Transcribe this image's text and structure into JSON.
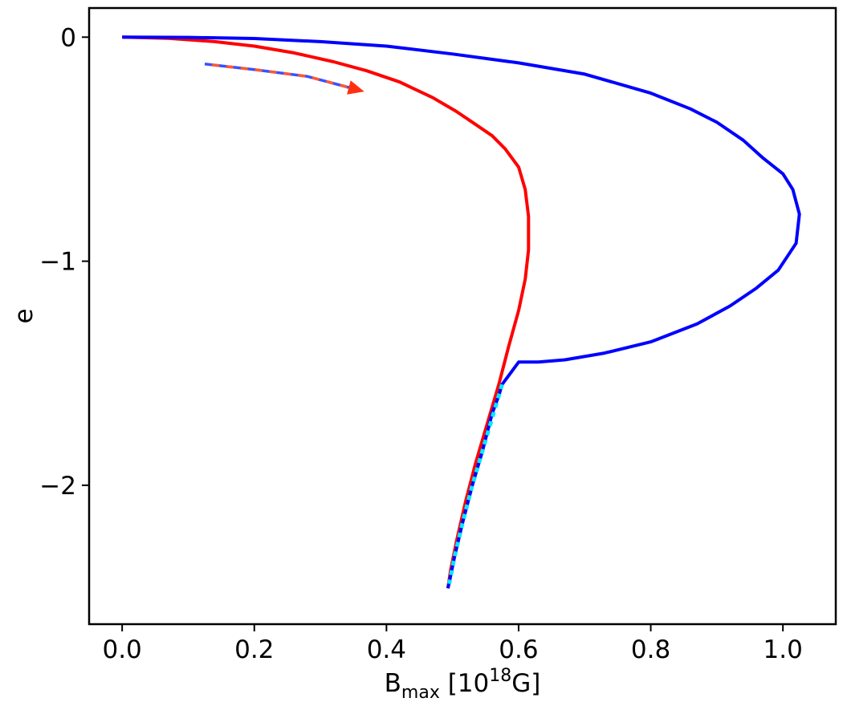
{
  "chart_data": {
    "type": "line",
    "title": "",
    "xlabel": {
      "base": "B",
      "sub": "max",
      "middle": " [10",
      "sup": "18",
      "end": "G]"
    },
    "ylabel": "e",
    "xlim": [
      -0.05,
      1.08
    ],
    "ylim": [
      -2.62,
      0.13
    ],
    "xticks": [
      0.0,
      0.2,
      0.4,
      0.6,
      0.8,
      1.0
    ],
    "xtick_labels": [
      "0.0",
      "0.2",
      "0.4",
      "0.6",
      "0.8",
      "1.0"
    ],
    "yticks": [
      0,
      -1,
      -2
    ],
    "ytick_labels": [
      "0",
      "−1",
      "−2"
    ],
    "grid": false,
    "legend": "none",
    "series": [
      {
        "color": "#ff0000",
        "style": "solid",
        "points": [
          [
            0.0,
            0.0
          ],
          [
            0.07,
            -0.005
          ],
          [
            0.14,
            -0.02
          ],
          [
            0.2,
            -0.04
          ],
          [
            0.26,
            -0.07
          ],
          [
            0.32,
            -0.11
          ],
          [
            0.37,
            -0.15
          ],
          [
            0.42,
            -0.2
          ],
          [
            0.47,
            -0.27
          ],
          [
            0.505,
            -0.33
          ],
          [
            0.535,
            -0.39
          ],
          [
            0.56,
            -0.44
          ],
          [
            0.58,
            -0.5
          ],
          [
            0.6,
            -0.58
          ],
          [
            0.61,
            -0.68
          ],
          [
            0.615,
            -0.8
          ],
          [
            0.615,
            -0.95
          ],
          [
            0.61,
            -1.08
          ],
          [
            0.6,
            -1.22
          ],
          [
            0.585,
            -1.38
          ],
          [
            0.57,
            -1.55
          ],
          [
            0.553,
            -1.72
          ],
          [
            0.535,
            -1.9
          ],
          [
            0.52,
            -2.07
          ],
          [
            0.506,
            -2.25
          ],
          [
            0.497,
            -2.38
          ],
          [
            0.493,
            -2.46
          ]
        ]
      },
      {
        "color": "#0000ff",
        "style": "solid",
        "points": [
          [
            0.0,
            0.0
          ],
          [
            0.1,
            -0.001
          ],
          [
            0.2,
            -0.006
          ],
          [
            0.3,
            -0.02
          ],
          [
            0.4,
            -0.04
          ],
          [
            0.5,
            -0.075
          ],
          [
            0.6,
            -0.115
          ],
          [
            0.7,
            -0.165
          ],
          [
            0.8,
            -0.25
          ],
          [
            0.86,
            -0.32
          ],
          [
            0.9,
            -0.38
          ],
          [
            0.94,
            -0.46
          ],
          [
            0.97,
            -0.54
          ],
          [
            1.0,
            -0.61
          ],
          [
            1.015,
            -0.68
          ],
          [
            1.025,
            -0.79
          ],
          [
            1.02,
            -0.92
          ],
          [
            0.993,
            -1.04
          ],
          [
            0.96,
            -1.12
          ],
          [
            0.92,
            -1.2
          ],
          [
            0.87,
            -1.28
          ],
          [
            0.8,
            -1.36
          ],
          [
            0.73,
            -1.41
          ],
          [
            0.67,
            -1.44
          ],
          [
            0.63,
            -1.45
          ],
          [
            0.6,
            -1.45
          ],
          [
            0.575,
            -1.55
          ],
          [
            0.57,
            -1.6
          ],
          [
            0.56,
            -1.68
          ],
          [
            0.545,
            -1.85
          ],
          [
            0.53,
            -2.0
          ],
          [
            0.515,
            -2.17
          ],
          [
            0.503,
            -2.32
          ],
          [
            0.496,
            -2.42
          ],
          [
            0.493,
            -2.46
          ]
        ]
      },
      {
        "color": "#00e8ff",
        "style": "dotted",
        "points": [
          [
            0.575,
            -1.55
          ],
          [
            0.56,
            -1.7
          ],
          [
            0.545,
            -1.85
          ],
          [
            0.53,
            -2.0
          ],
          [
            0.515,
            -2.17
          ],
          [
            0.503,
            -2.32
          ],
          [
            0.495,
            -2.44
          ]
        ]
      }
    ],
    "annotations": [
      {
        "type": "arrow",
        "style": "dashed blue/red",
        "points": [
          [
            0.125,
            -0.12
          ],
          [
            0.2,
            -0.145
          ],
          [
            0.28,
            -0.175
          ],
          [
            0.35,
            -0.23
          ]
        ],
        "head_color": "#ff3010"
      }
    ]
  }
}
